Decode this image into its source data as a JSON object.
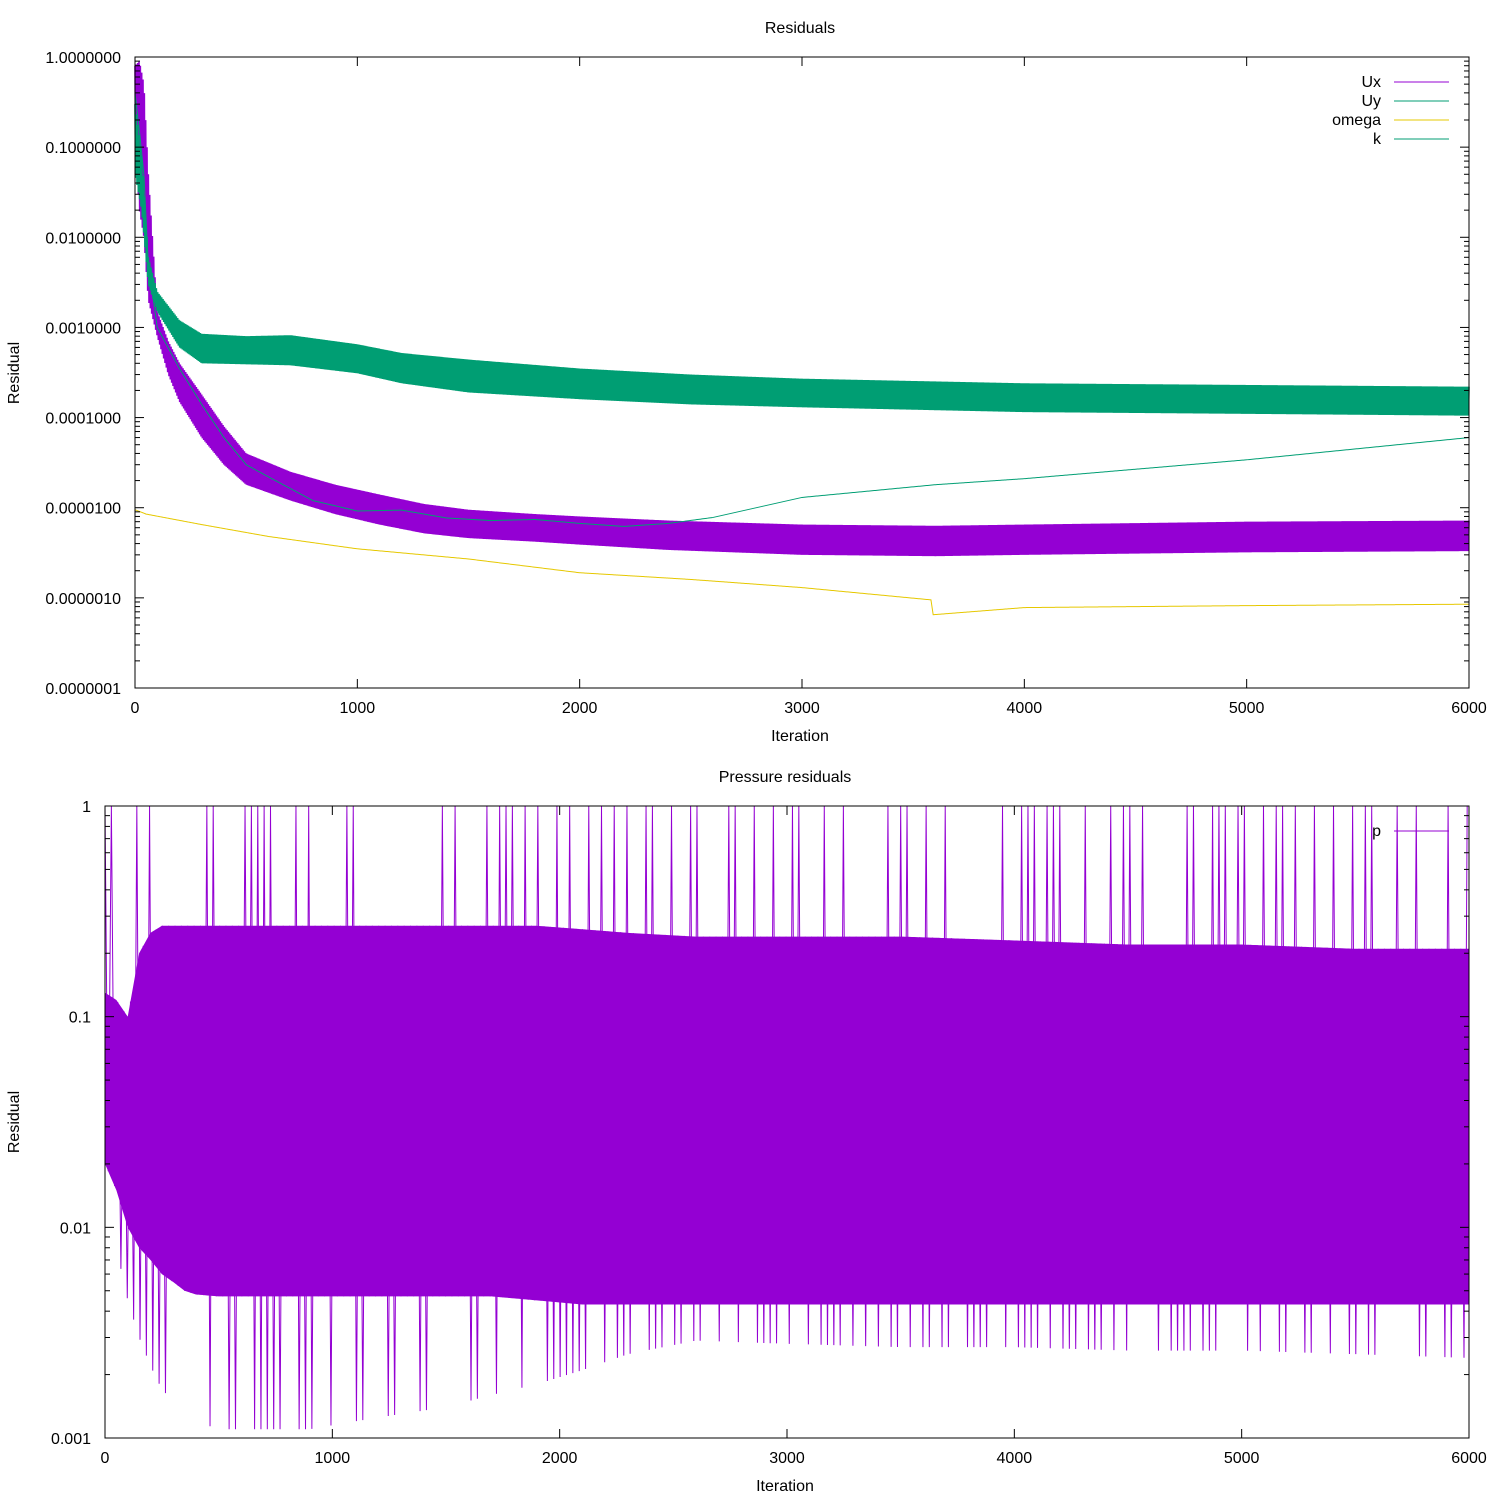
{
  "chart_data": [
    {
      "type": "line",
      "title": "Residuals",
      "xlabel": "Iteration",
      "ylabel": "Residual",
      "yscale": "log",
      "xlim": [
        0,
        6000
      ],
      "ylim": [
        1e-07,
        1
      ],
      "xticks": [
        0,
        1000,
        2000,
        3000,
        4000,
        5000,
        6000
      ],
      "xtick_labels": [
        "0",
        "1000",
        "2000",
        "3000",
        "4000",
        "5000",
        "6000"
      ],
      "yticks": [
        1,
        0.1,
        0.01,
        0.001,
        0.0001,
        1e-05,
        1e-06,
        1e-07
      ],
      "ytick_labels": [
        "1.0000000",
        "0.1000000",
        "0.0100000",
        "0.0010000",
        "0.0001000",
        "0.0000100",
        "0.0000010",
        "0.0000001"
      ],
      "grid": false,
      "legend_position": "top-right",
      "series": [
        {
          "name": "Ux",
          "color": "#9400d3",
          "style": "oscillating-band",
          "x": [
            0,
            20,
            40,
            60,
            100,
            150,
            200,
            300,
            400,
            500,
            700,
            900,
            1100,
            1300,
            1500,
            1800,
            2000,
            2400,
            3000,
            3600,
            4000,
            5000,
            6000
          ],
          "upper": [
            0.8,
            0.9,
            0.5,
            0.05,
            0.0015,
            0.0007,
            0.0004,
            0.00018,
            8e-05,
            4e-05,
            2.5e-05,
            1.8e-05,
            1.4e-05,
            1.1e-05,
            9.5e-06,
            8.5e-06,
            8e-06,
            7.2e-06,
            6.5e-06,
            6.3e-06,
            6.5e-06,
            7e-06,
            7.2e-06
          ],
          "lower": [
            0.1,
            0.02,
            0.01,
            0.002,
            0.0008,
            0.0003,
            0.00015,
            6e-05,
            3e-05,
            1.8e-05,
            1.2e-05,
            8.5e-06,
            6.5e-06,
            5.2e-06,
            4.6e-06,
            4.2e-06,
            3.9e-06,
            3.4e-06,
            3e-06,
            2.9e-06,
            3e-06,
            3.2e-06,
            3.3e-06
          ]
        },
        {
          "name": "Uy",
          "color": "#009e73",
          "style": "line",
          "x": [
            0,
            20,
            40,
            60,
            100,
            200,
            300,
            400,
            500,
            600,
            800,
            1000,
            1200,
            1400,
            1600,
            1800,
            2000,
            2200,
            2400,
            2600,
            3000,
            3600,
            4000,
            5000,
            6000
          ],
          "y": [
            0.4,
            0.15,
            0.05,
            0.005,
            0.001,
            0.00035,
            0.00014,
            6e-05,
            3e-05,
            2.2e-05,
            1.2e-05,
            9.2e-06,
            9.4e-06,
            7.7e-06,
            7.2e-06,
            7.4e-06,
            6.7e-06,
            6.2e-06,
            6.7e-06,
            7.8e-06,
            1.3e-05,
            1.8e-05,
            2.1e-05,
            3.4e-05,
            6e-05
          ]
        },
        {
          "name": "omega",
          "color": "#e6c800",
          "style": "line",
          "x": [
            0,
            50,
            300,
            600,
            1000,
            1500,
            2000,
            2500,
            3000,
            3580,
            3590,
            4000,
            5000,
            6000
          ],
          "y": [
            9.5e-06,
            8.5e-06,
            6.5e-06,
            4.8e-06,
            3.5e-06,
            2.7e-06,
            1.9e-06,
            1.6e-06,
            1.3e-06,
            9.5e-07,
            6.5e-07,
            7.8e-07,
            8.2e-07,
            8.5e-07
          ]
        },
        {
          "name": "k",
          "color": "#009e73",
          "style": "oscillating-band",
          "x": [
            0,
            30,
            60,
            100,
            200,
            300,
            500,
            700,
            1000,
            1200,
            1500,
            2000,
            2500,
            3000,
            4000,
            5000,
            6000
          ],
          "upper": [
            0.3,
            0.08,
            0.006,
            0.0025,
            0.0012,
            0.00085,
            0.0008,
            0.00082,
            0.00065,
            0.00052,
            0.00044,
            0.00035,
            0.0003,
            0.00027,
            0.00024,
            0.00023,
            0.00022
          ],
          "lower": [
            0.05,
            0.02,
            0.003,
            0.0015,
            0.0006,
            0.0004,
            0.00039,
            0.00038,
            0.00031,
            0.00024,
            0.00019,
            0.00016,
            0.00014,
            0.00013,
            0.000115,
            0.00011,
            0.000105
          ]
        }
      ]
    },
    {
      "type": "line",
      "title": "Pressure residuals",
      "xlabel": "Iteration",
      "ylabel": "Residual",
      "yscale": "log",
      "xlim": [
        0,
        6000
      ],
      "ylim": [
        0.001,
        1
      ],
      "xticks": [
        0,
        1000,
        2000,
        3000,
        4000,
        5000,
        6000
      ],
      "xtick_labels": [
        "0",
        "1000",
        "2000",
        "3000",
        "4000",
        "5000",
        "6000"
      ],
      "yticks": [
        1,
        0.1,
        0.01,
        0.001
      ],
      "ytick_labels": [
        "1",
        "0.1",
        "0.01",
        "0.001"
      ],
      "grid": false,
      "legend_position": "top-right",
      "series": [
        {
          "name": "p",
          "color": "#9400d3",
          "style": "oscillating-band",
          "x": [
            0,
            50,
            100,
            150,
            200,
            250,
            300,
            350,
            400,
            500,
            700,
            900,
            1100,
            1300,
            1500,
            1700,
            1900,
            2100,
            2300,
            2600,
            3000,
            3500,
            4000,
            4500,
            5000,
            5500,
            6000
          ],
          "upper": [
            1,
            1,
            1,
            1,
            1,
            1,
            1,
            1,
            1,
            1,
            1,
            1,
            1,
            1,
            1,
            1,
            1,
            1,
            1,
            1,
            1,
            1,
            1,
            1,
            1,
            1,
            1
          ],
          "band_upper": [
            0.13,
            0.12,
            0.1,
            0.2,
            0.25,
            0.27,
            0.27,
            0.27,
            0.27,
            0.27,
            0.27,
            0.27,
            0.27,
            0.27,
            0.27,
            0.27,
            0.27,
            0.26,
            0.25,
            0.24,
            0.24,
            0.24,
            0.23,
            0.22,
            0.22,
            0.21,
            0.21
          ],
          "band_lower": [
            0.02,
            0.015,
            0.01,
            0.008,
            0.007,
            0.006,
            0.0055,
            0.005,
            0.0048,
            0.0047,
            0.0047,
            0.0047,
            0.0047,
            0.0047,
            0.0047,
            0.0047,
            0.0045,
            0.0043,
            0.0043,
            0.0043,
            0.0043,
            0.0043,
            0.0043,
            0.0043,
            0.0043,
            0.0043,
            0.0043
          ],
          "lower": [
            0.012,
            0.008,
            0.0045,
            0.003,
            0.0022,
            0.0017,
            0.0015,
            0.0013,
            0.0012,
            0.0011,
            0.0011,
            0.0011,
            0.0012,
            0.0013,
            0.0014,
            0.0016,
            0.0018,
            0.0021,
            0.0025,
            0.0029,
            0.0028,
            0.0027,
            0.0027,
            0.0026,
            0.0026,
            0.0025,
            0.0024
          ]
        }
      ]
    }
  ]
}
